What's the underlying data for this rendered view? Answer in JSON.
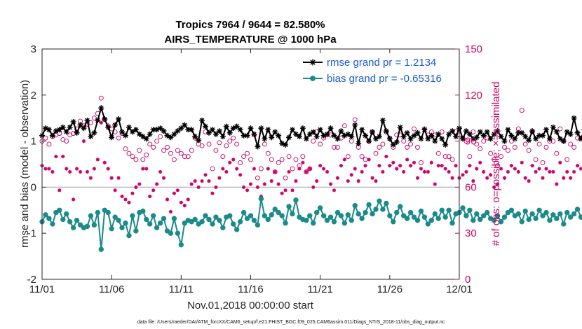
{
  "chart_data": {
    "type": "line",
    "title": "Tropics 7964 / 9644 = 82.580%",
    "subtitle": "AIRS_TEMPERATURE @ 1000 hPa",
    "xlabel": "Nov.01,2018 00:00:00 start",
    "ylabel": "rmse and bias (model - observation)",
    "y2label": "# of obs: o=possible; ×=assimilated",
    "xlim": [
      0,
      30
    ],
    "ylim": [
      -2,
      3
    ],
    "y2lim": [
      0,
      150
    ],
    "x_ticks": [
      0,
      5,
      10,
      15,
      20,
      25,
      30
    ],
    "x_tick_labels": [
      "11/01",
      "11/06",
      "11/11",
      "11/16",
      "11/21",
      "11/26",
      "12/01"
    ],
    "y_ticks": [
      -2,
      -1,
      0,
      1,
      2,
      3
    ],
    "y_tick_labels": [
      "-2",
      "-1",
      "0",
      "1",
      "2",
      "3"
    ],
    "y2_ticks": [
      0,
      30,
      60,
      90,
      120,
      150
    ],
    "y2_tick_labels": [
      "0",
      "30",
      "60",
      "90",
      "120",
      "150"
    ],
    "legend_position": "top-right",
    "series": [
      {
        "name": "rmse grand pr = 1.2134",
        "axis": "left",
        "color": "#000000",
        "marker": "asterisk",
        "x_step": 0.25,
        "values": [
          1.12,
          1.28,
          1.25,
          1.12,
          1.22,
          1.25,
          1.3,
          1.2,
          1.3,
          1.42,
          1.18,
          1.35,
          1.28,
          1.45,
          1.1,
          1.18,
          1.45,
          1.72,
          1.48,
          1.3,
          1.08,
          1.35,
          1.48,
          1.2,
          1.12,
          1.3,
          1.2,
          1.25,
          1.15,
          1.1,
          1.05,
          1.15,
          1.25,
          1.25,
          1.28,
          1.22,
          1.12,
          1.08,
          1.15,
          1.22,
          1.28,
          1.35,
          1.25,
          1.25,
          1.1,
          1.02,
          1.45,
          1.32,
          1.18,
          1.25,
          1.15,
          1.22,
          1.1,
          1.32,
          1.18,
          1.28,
          1.32,
          1.25,
          1.12,
          1.12,
          1.28,
          1.15,
          0.88,
          1.28,
          1.05,
          1.25,
          1.08,
          1.2,
          1.12,
          0.95,
          0.92,
          1.08,
          1.25,
          1.15,
          1.1,
          1.28,
          1.05,
          1.15,
          1.2,
          1.1,
          1.25,
          1.12,
          1.15,
          1.28,
          1.12,
          1.05,
          1.22,
          1.12,
          1.15,
          1.1,
          1.35,
          0.95,
          1.25,
          1.12,
          1.0,
          1.2,
          1.05,
          1.1,
          1.45,
          1.22,
          1.05,
          0.92,
          0.98,
          1.3,
          1.1,
          1.18,
          1.05,
          1.12,
          1.18,
          1.05,
          1.25,
          1.05,
          1.12,
          1.0,
          1.15,
          1.05,
          0.92,
          1.15,
          1.22,
          1.1,
          1.28,
          1.05,
          1.22,
          1.15,
          1.05,
          1.08,
          1.2,
          1.12,
          1.2,
          1.05,
          1.15,
          1.22,
          1.1,
          1.0,
          1.25,
          1.12,
          1.05,
          1.18,
          1.18,
          1.1,
          1.02,
          1.22,
          1.05,
          1.12,
          1.12,
          1.25,
          1.05,
          1.3,
          1.2,
          1.05,
          1.0,
          1.2,
          1.15,
          1.5,
          1.18,
          1.05,
          1.25,
          1.12,
          1.3,
          1.28
        ]
      },
      {
        "name": "bias grand pr = -0.65316",
        "axis": "left",
        "color": "#1a8a8a",
        "marker": "circle",
        "x_step": 0.25,
        "values": [
          -0.75,
          -0.6,
          -0.68,
          -0.8,
          -0.55,
          -0.5,
          -0.7,
          -0.58,
          -0.75,
          -0.88,
          -0.72,
          -0.82,
          -0.88,
          -0.85,
          -0.62,
          -0.82,
          -0.55,
          -1.35,
          -0.5,
          -0.55,
          -0.9,
          -0.65,
          -0.72,
          -0.88,
          -0.78,
          -1.05,
          -0.62,
          -0.95,
          -0.55,
          -0.52,
          -0.7,
          -0.8,
          -0.62,
          -0.88,
          -0.78,
          -0.68,
          -0.95,
          -1.0,
          -0.68,
          -1.0,
          -1.25,
          -0.78,
          -0.72,
          -0.75,
          -0.7,
          -0.8,
          -0.75,
          -0.62,
          -0.7,
          -0.8,
          -0.65,
          -0.72,
          -0.88,
          -0.65,
          -0.62,
          -0.8,
          -0.92,
          -0.75,
          -0.55,
          -0.68,
          -0.62,
          -0.72,
          -0.82,
          -0.25,
          -0.62,
          -0.7,
          -0.6,
          -0.48,
          -0.55,
          -0.62,
          -0.78,
          -0.42,
          -0.58,
          -0.28,
          -0.65,
          -0.7,
          -0.72,
          -0.62,
          -0.78,
          -0.55,
          -0.45,
          -0.62,
          -0.72,
          -0.65,
          -0.75,
          -0.55,
          -0.62,
          -0.78,
          -0.6,
          -0.72,
          -0.4,
          -0.58,
          -0.68,
          -0.55,
          -0.38,
          -0.58,
          -0.48,
          -0.3,
          -0.48,
          -0.35,
          -0.62,
          -0.75,
          -0.55,
          -0.42,
          -0.62,
          -0.68,
          -0.55,
          -0.65,
          -0.72,
          -0.52,
          -0.65,
          -0.8,
          -0.72,
          -0.58,
          -0.68,
          -0.5,
          -0.65,
          -0.5,
          -0.78,
          -0.58,
          -0.55,
          -0.45,
          -0.62,
          -0.5,
          -0.72,
          -0.58,
          -0.7,
          -0.62,
          -0.55,
          -0.68,
          -0.72,
          -0.62,
          -0.75,
          -0.65,
          -0.55,
          -0.5,
          -0.62,
          -0.58,
          -0.75,
          -0.52,
          -0.7,
          -0.58,
          -0.68,
          -0.5,
          -0.62,
          -0.55,
          -0.72,
          -0.6,
          -0.68,
          -0.58,
          -0.8,
          -0.55,
          -0.65,
          -0.58,
          -0.48,
          -0.65,
          -0.7,
          -0.75,
          -0.55,
          -0.9,
          -0.48,
          -0.62
        ]
      },
      {
        "name": "possible obs (o)",
        "axis": "right",
        "color": "#cc0066",
        "marker": "open-circle",
        "x_step": 0.25,
        "values": [
          90,
          92,
          88,
          93,
          94,
          95,
          91,
          90,
          94,
          95,
          98,
          103,
          100,
          101,
          102,
          105,
          108,
          118,
          104,
          100,
          98,
          96,
          92,
          95,
          85,
          82,
          80,
          78,
          84,
          78,
          81,
          88,
          86,
          90,
          93,
          84,
          86,
          82,
          78,
          84,
          82,
          80,
          80,
          84,
          92,
          88,
          87,
          96,
          88,
          72,
          84,
          89,
          80,
          87,
          90,
          92,
          88,
          76,
          80,
          82,
          78,
          94,
          66,
          72,
          88,
          82,
          78,
          70,
          76,
          78,
          66,
          80,
          72,
          78,
          74,
          80,
          70,
          72,
          90,
          96,
          88,
          92,
          94,
          94,
          86,
          86,
          92,
          100,
          80,
          90,
          104,
          86,
          80,
          78,
          90,
          96,
          82,
          86,
          88,
          96,
          92,
          86,
          94,
          94,
          90,
          86,
          88,
          98,
          86,
          76,
          98,
          94,
          96,
          94,
          82,
          96,
          80,
          80,
          78,
          96,
          94,
          92,
          90,
          80,
          96,
          88,
          85,
          90,
          92,
          82,
          78,
          74,
          80,
          86,
          84,
          90,
          86,
          98,
          110,
          88,
          84,
          96,
          78,
          88,
          76,
          86,
          90,
          90,
          82,
          98,
          90,
          78,
          88,
          86,
          92,
          92,
          100,
          96,
          96,
          88,
          100,
          90
        ]
      },
      {
        "name": "assimilated obs (×)",
        "axis": "right",
        "color": "#cc0066",
        "marker": "x",
        "x_step": 0.25,
        "values": [
          74,
          72,
          72,
          70,
          80,
          58,
          80,
          72,
          70,
          52,
          72,
          70,
          90,
          70,
          66,
          72,
          78,
          102,
          76,
          72,
          66,
          58,
          66,
          54,
          52,
          50,
          56,
          60,
          62,
          72,
          72,
          54,
          58,
          62,
          70,
          66,
          52,
          44,
          56,
          58,
          50,
          48,
          52,
          62,
          64,
          60,
          64,
          68,
          64,
          56,
          60,
          66,
          72,
          70,
          76,
          78,
          72,
          68,
          60,
          58,
          62,
          72,
          60,
          54,
          62,
          72,
          64,
          70,
          62,
          56,
          58,
          70,
          58,
          64,
          72,
          76,
          70,
          72,
          60,
          64,
          74,
          72,
          70,
          62,
          58,
          66,
          74,
          78,
          64,
          68,
          72,
          64,
          70,
          74,
          78,
          66,
          64,
          74,
          70,
          80,
          74,
          76,
          72,
          74,
          70,
          78,
          74,
          76,
          66,
          72,
          70,
          70,
          76,
          62,
          74,
          74,
          72,
          70,
          66,
          74,
          66,
          68,
          70,
          74,
          64,
          72,
          76,
          70,
          66,
          68,
          60,
          62,
          72,
          66,
          70,
          74,
          72,
          70,
          76,
          66,
          64,
          74,
          70,
          72,
          66,
          72,
          70,
          70,
          62,
          76,
          66,
          70,
          66,
          70,
          74,
          72,
          66,
          74,
          76,
          72,
          80,
          74
        ]
      }
    ],
    "footnote": "data file: /Users/raeder/DAI/ATM_forcXX/CAM6_setup/f.e21.FHIST_BGC.f09_025.CAM6assim.011/Diags_NTrS_2018-11/obs_diag_output.nc"
  }
}
